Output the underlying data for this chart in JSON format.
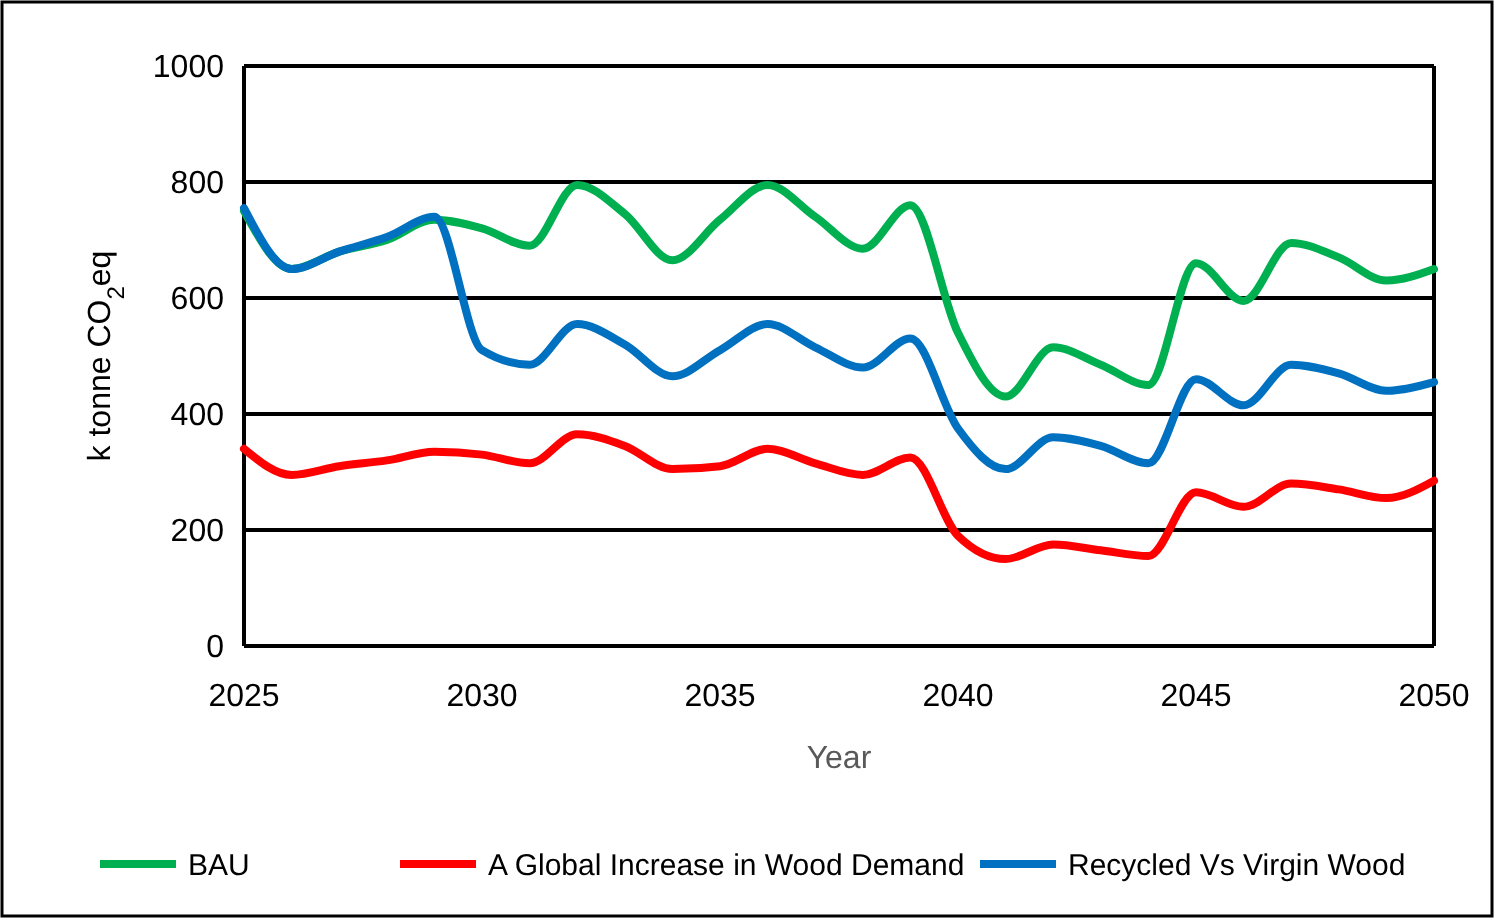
{
  "chart_data": {
    "type": "line",
    "xlabel": "Year",
    "ylabel": "k tonne CO$_{2}$eq",
    "x": [
      2025,
      2026,
      2027,
      2028,
      2029,
      2030,
      2031,
      2032,
      2033,
      2034,
      2035,
      2036,
      2037,
      2038,
      2039,
      2040,
      2041,
      2042,
      2043,
      2044,
      2045,
      2046,
      2047,
      2048,
      2049,
      2050
    ],
    "series": [
      {
        "name": "BAU",
        "color": "#00b050",
        "values": [
          750,
          650,
          680,
          700,
          735,
          720,
          690,
          795,
          745,
          665,
          735,
          795,
          740,
          685,
          760,
          540,
          430,
          515,
          485,
          450,
          660,
          595,
          695,
          670,
          630,
          650
        ]
      },
      {
        "name": "A Global Increase in Wood Demand",
        "color": "#ff0000",
        "values": [
          340,
          295,
          310,
          320,
          335,
          330,
          315,
          365,
          345,
          305,
          310,
          340,
          315,
          295,
          325,
          190,
          150,
          175,
          165,
          155,
          265,
          240,
          280,
          270,
          255,
          285
        ]
      },
      {
        "name": "Recycled Vs Virgin Wood",
        "color": "#0070c0",
        "values": [
          755,
          650,
          680,
          705,
          740,
          510,
          485,
          555,
          520,
          465,
          510,
          555,
          515,
          480,
          530,
          375,
          305,
          360,
          345,
          315,
          460,
          415,
          485,
          470,
          440,
          455
        ]
      }
    ],
    "xlim": [
      2025,
      2050
    ],
    "xticks": [
      2025,
      2030,
      2035,
      2040,
      2045,
      2050
    ],
    "ylim": [
      0,
      1000
    ],
    "yticks": [
      0,
      200,
      400,
      600,
      800,
      1000
    ],
    "grid": "y",
    "legend": "bottom",
    "marker": "none",
    "line_style": "solid"
  }
}
